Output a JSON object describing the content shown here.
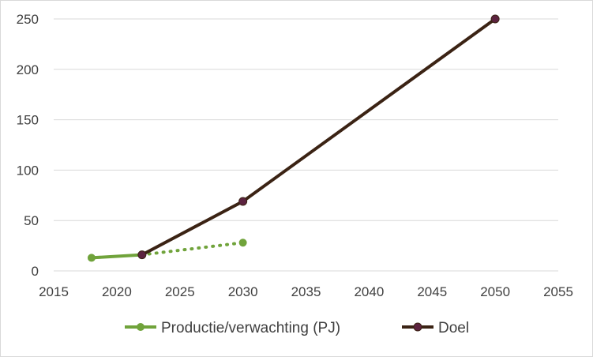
{
  "chart_data": {
    "type": "line",
    "title": "",
    "xlabel": "",
    "ylabel": "",
    "xlim": [
      2015,
      2055
    ],
    "ylim": [
      0,
      250
    ],
    "x_ticks": [
      2015,
      2020,
      2025,
      2030,
      2035,
      2040,
      2045,
      2050,
      2055
    ],
    "y_ticks": [
      0,
      50,
      100,
      150,
      200,
      250
    ],
    "grid": "horizontal",
    "legend_position": "bottom",
    "series": [
      {
        "name": "Productie/verwachting (PJ)",
        "color": "#70a33b",
        "marker": "circle",
        "segments": [
          {
            "style": "solid",
            "points": [
              [
                2018,
                13
              ],
              [
                2022,
                16
              ]
            ]
          },
          {
            "style": "dotted",
            "points": [
              [
                2022,
                16
              ],
              [
                2030,
                28
              ]
            ]
          }
        ]
      },
      {
        "name": "Doel",
        "color": "#3b2314",
        "marker_fill": "#5c2340",
        "marker": "circle",
        "segments": [
          {
            "style": "solid",
            "points": [
              [
                2022,
                16
              ],
              [
                2030,
                69
              ],
              [
                2050,
                250
              ]
            ]
          }
        ]
      }
    ]
  }
}
